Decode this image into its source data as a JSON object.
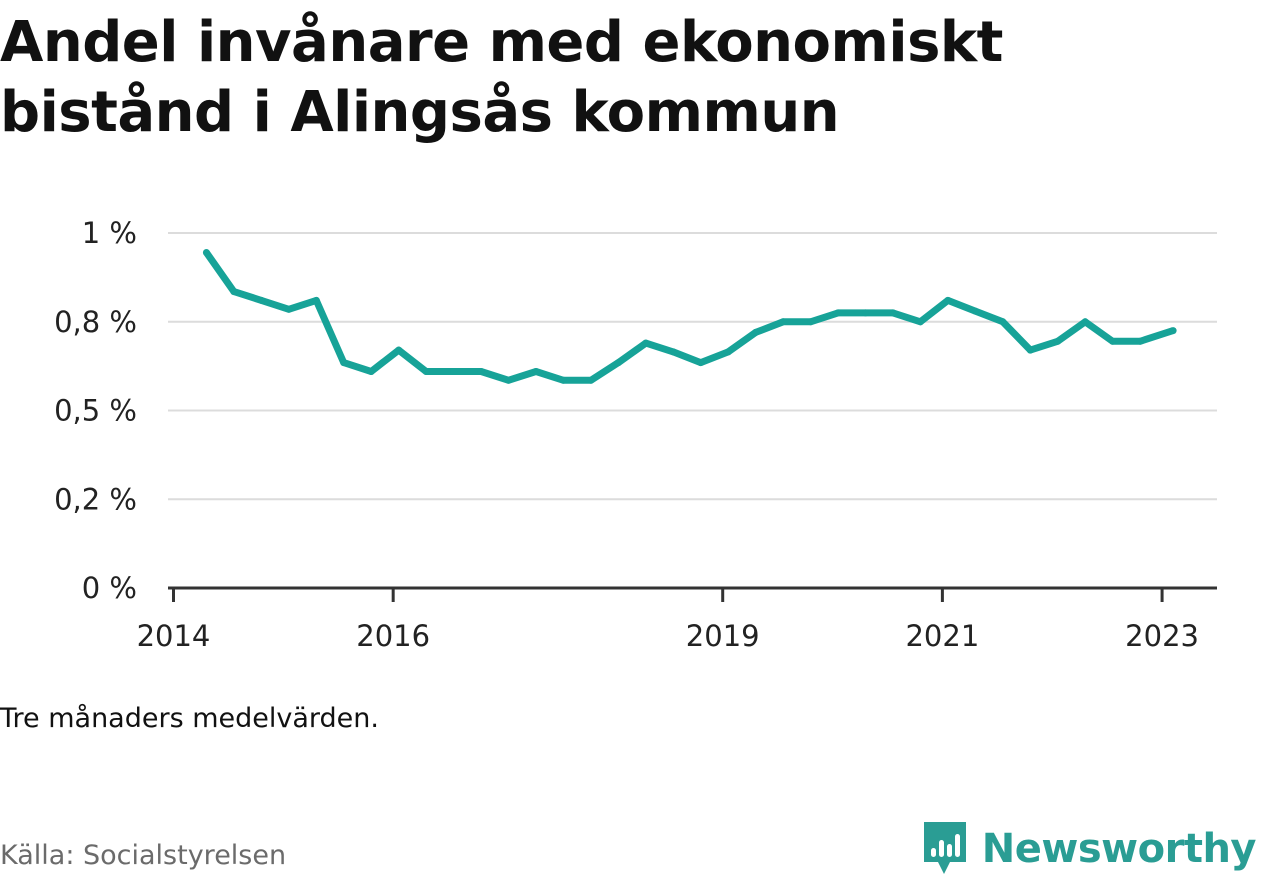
{
  "title": "Andel invånare med ekonomiskt bistånd i Alingsås kommun",
  "note": "Tre månaders medelvärden.",
  "source": "Källa: Socialstyrelsen",
  "brand": {
    "name": "Newsworthy",
    "icon": "newsworthy-logo-icon",
    "color": "#2a9d94"
  },
  "chart_data": {
    "type": "line",
    "ylim": [
      0,
      1
    ],
    "xlim": [
      2013.95,
      2023.5
    ],
    "grid": true,
    "y_ticks": [
      {
        "value": 0,
        "label": "0 %"
      },
      {
        "value": 0.25,
        "label": "0,2 %"
      },
      {
        "value": 0.5,
        "label": "0,5 %"
      },
      {
        "value": 0.75,
        "label": "0,8 %"
      },
      {
        "value": 1.0,
        "label": "1 %"
      }
    ],
    "x_ticks": [
      {
        "value": 2014,
        "label": "2014"
      },
      {
        "value": 2016,
        "label": "2016"
      },
      {
        "value": 2019,
        "label": "2019"
      },
      {
        "value": 2021,
        "label": "2021"
      },
      {
        "value": 2023,
        "label": "2023"
      }
    ],
    "series": [
      {
        "color": "#17a398",
        "x": [
          2014.3,
          2014.55,
          2014.8,
          2015.05,
          2015.3,
          2015.55,
          2015.8,
          2016.05,
          2016.3,
          2016.55,
          2016.8,
          2017.05,
          2017.3,
          2017.55,
          2017.8,
          2018.05,
          2018.3,
          2018.55,
          2018.8,
          2019.05,
          2019.3,
          2019.55,
          2019.8,
          2020.05,
          2020.3,
          2020.55,
          2020.8,
          2021.05,
          2021.3,
          2021.55,
          2021.8,
          2022.05,
          2022.3,
          2022.55,
          2022.8,
          2023.1
        ],
        "y": [
          0.945,
          0.835,
          0.81,
          0.785,
          0.81,
          0.635,
          0.61,
          0.67,
          0.61,
          0.61,
          0.61,
          0.585,
          0.61,
          0.585,
          0.585,
          0.635,
          0.69,
          0.665,
          0.635,
          0.665,
          0.72,
          0.75,
          0.75,
          0.775,
          0.775,
          0.775,
          0.75,
          0.81,
          0.78,
          0.75,
          0.67,
          0.695,
          0.75,
          0.695,
          0.695,
          0.725
        ]
      }
    ]
  }
}
